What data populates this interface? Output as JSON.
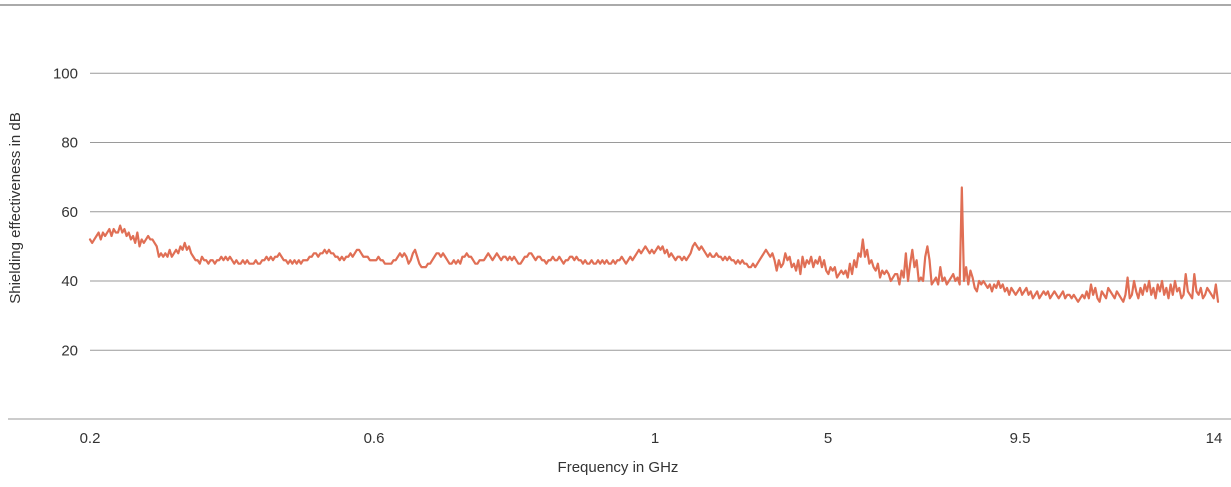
{
  "chart_data": {
    "type": "line",
    "title": "",
    "xlabel": "Frequency in GHz",
    "ylabel": "Shielding effectiveness in dB",
    "x_scale": "categorical-segments",
    "x_ticks": [
      "0.2",
      "0.6",
      "1",
      "5",
      "9.5",
      "14"
    ],
    "y_ticks": [
      20,
      40,
      60,
      80,
      100
    ],
    "ylim": [
      0,
      120
    ],
    "grid": "horizontal",
    "legend": "none",
    "line_color": "#e06f55",
    "series": [
      {
        "values": [
          52,
          51,
          52,
          53,
          54,
          52,
          54,
          53,
          54,
          55,
          53,
          55,
          54,
          54,
          56,
          54,
          55,
          53,
          54,
          52,
          53,
          51,
          54,
          50,
          52,
          51,
          52,
          53,
          52,
          52,
          51,
          50,
          47,
          48,
          47,
          48,
          47,
          49,
          47,
          48,
          49,
          48,
          50,
          49,
          51,
          49,
          50,
          48,
          47,
          46,
          46,
          45,
          47,
          46,
          46,
          45,
          46,
          46,
          45,
          46,
          46,
          47,
          46,
          47,
          46,
          47,
          46,
          45,
          46,
          45,
          45,
          46,
          45,
          46,
          45,
          45,
          45,
          46,
          45,
          45,
          46,
          46,
          47,
          46,
          47,
          46,
          47,
          47,
          48,
          47,
          46,
          46,
          45,
          46,
          45,
          46,
          45,
          46,
          45,
          46,
          46,
          46,
          47,
          47,
          48,
          48,
          47,
          48,
          48,
          49,
          48,
          49,
          48,
          48,
          47,
          47,
          46,
          47,
          46,
          47,
          47,
          48,
          47,
          48,
          49,
          49,
          48,
          47,
          47,
          47,
          46,
          46,
          46,
          46,
          47,
          46,
          46,
          45,
          45,
          45,
          45,
          46,
          46,
          47,
          48,
          47,
          48,
          47,
          45,
          46,
          48,
          49,
          47,
          45,
          44,
          44,
          44,
          45,
          45,
          46,
          47,
          48,
          48,
          47,
          48,
          47,
          46,
          45,
          45,
          46,
          45,
          46,
          45,
          47,
          47,
          48,
          47,
          47,
          46,
          45,
          45,
          46,
          46,
          46,
          47,
          48,
          47,
          46,
          47,
          48,
          47,
          46,
          47,
          47,
          46,
          47,
          46,
          47,
          46,
          45,
          45,
          46,
          47,
          47,
          48,
          48,
          47,
          46,
          47,
          47,
          46,
          46,
          45,
          46,
          46,
          47,
          46,
          46,
          47,
          46,
          45,
          46,
          46,
          47,
          47,
          46,
          47,
          46,
          46,
          45,
          46,
          45,
          45,
          46,
          45,
          45,
          46,
          45,
          46,
          45,
          46,
          45,
          45,
          46,
          45,
          46,
          46,
          47,
          46,
          45,
          46,
          47,
          46,
          47,
          48,
          49,
          48,
          49,
          50,
          49,
          48,
          49,
          48,
          49,
          50,
          49,
          50,
          48,
          49,
          47,
          48,
          47,
          46,
          47,
          47,
          46,
          47,
          46,
          47,
          48,
          50,
          51,
          50,
          49,
          50,
          49,
          48,
          47,
          48,
          47,
          47,
          48,
          47,
          47,
          46,
          47,
          46,
          47,
          46,
          46,
          45,
          46,
          45,
          46,
          45,
          45,
          44,
          44,
          45,
          44,
          45,
          46,
          47,
          48,
          49,
          48,
          47,
          48,
          46,
          43,
          46,
          44,
          45,
          48,
          46,
          47,
          44,
          45,
          43,
          46,
          42,
          47,
          44,
          46,
          45,
          47,
          44,
          46,
          45,
          47,
          44,
          46,
          43,
          42,
          44,
          43,
          44,
          41,
          42,
          43,
          42,
          43,
          41,
          45,
          42,
          46,
          44,
          48,
          47,
          52,
          47,
          49,
          45,
          46,
          44,
          43,
          45,
          41,
          43,
          42,
          43,
          42,
          40,
          41,
          42,
          42,
          39,
          43,
          41,
          48,
          40,
          45,
          49,
          44,
          46,
          40,
          41,
          40,
          47,
          50,
          46,
          39,
          40,
          41,
          39,
          44,
          40,
          41,
          39,
          40,
          41,
          42,
          40,
          41,
          39,
          67,
          40,
          44,
          39,
          43,
          41,
          38,
          37,
          40,
          39,
          40,
          39,
          38,
          39,
          37,
          39,
          38,
          40,
          38,
          39,
          37,
          38,
          36,
          38,
          37,
          36,
          37,
          38,
          36,
          37,
          38,
          36,
          37,
          35,
          36,
          37,
          35,
          36,
          37,
          36,
          37,
          35,
          36,
          37,
          36,
          35,
          36,
          37,
          35,
          36,
          36,
          35,
          36,
          35,
          34,
          35,
          36,
          35,
          37,
          35,
          39,
          36,
          38,
          35,
          34,
          37,
          36,
          35,
          38,
          37,
          36,
          35,
          37,
          36,
          35,
          34,
          36,
          41,
          35,
          36,
          40,
          37,
          35,
          38,
          36,
          39,
          37,
          40,
          36,
          38,
          35,
          39,
          37,
          40,
          36,
          38,
          35,
          39,
          36,
          40,
          37,
          38,
          35,
          36,
          42,
          37,
          36,
          35,
          42,
          37,
          36,
          38,
          35,
          36,
          38,
          37,
          36,
          35,
          39,
          34
        ]
      }
    ]
  }
}
